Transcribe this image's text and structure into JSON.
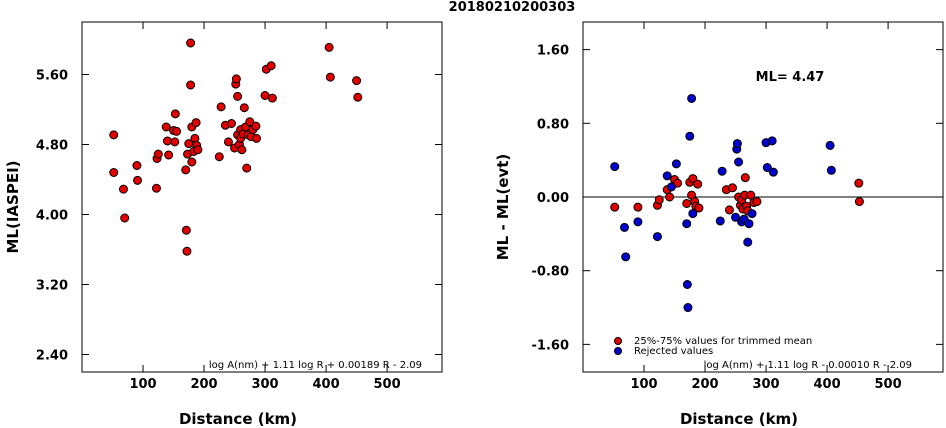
{
  "title": "20180210200303",
  "chart_data": [
    {
      "type": "scatter",
      "xlabel": "Distance (km)",
      "ylabel": "ML(IASPEI)",
      "xlim": [
        0,
        590
      ],
      "ylim": [
        2.2,
        6.2
      ],
      "xticks": [
        100,
        200,
        300,
        400,
        500
      ],
      "yticks": [
        2.4,
        3.2,
        4.0,
        4.8,
        5.6
      ],
      "ytick_labels": [
        "2.40",
        "3.20",
        "4.00",
        "4.80",
        "5.60"
      ],
      "formula": "log A(nm) + 1.11 log R + 0.00189 R - 2.09",
      "grid": false,
      "series": [
        {
          "color": "#e00000",
          "points": [
            [
              52,
              4.91
            ],
            [
              52,
              4.48
            ],
            [
              68,
              4.29
            ],
            [
              70,
              3.96
            ],
            [
              90,
              4.56
            ],
            [
              91,
              4.39
            ],
            [
              122,
              4.3
            ],
            [
              123,
              4.64
            ],
            [
              125,
              4.69
            ],
            [
              138,
              5.0
            ],
            [
              140,
              4.84
            ],
            [
              142,
              4.68
            ],
            [
              150,
              4.96
            ],
            [
              152,
              4.83
            ],
            [
              153,
              5.15
            ],
            [
              155,
              4.95
            ],
            [
              170,
              4.51
            ],
            [
              171,
              3.82
            ],
            [
              172,
              3.58
            ],
            [
              173,
              4.69
            ],
            [
              175,
              4.81
            ],
            [
              178,
              5.48
            ],
            [
              178,
              5.96
            ],
            [
              180,
              4.6
            ],
            [
              180,
              5.0
            ],
            [
              183,
              4.72
            ],
            [
              185,
              4.87
            ],
            [
              187,
              5.05
            ],
            [
              188,
              4.79
            ],
            [
              190,
              4.74
            ],
            [
              225,
              4.66
            ],
            [
              228,
              5.23
            ],
            [
              235,
              5.02
            ],
            [
              240,
              4.83
            ],
            [
              245,
              5.04
            ],
            [
              250,
              4.76
            ],
            [
              252,
              5.49
            ],
            [
              253,
              5.55
            ],
            [
              255,
              4.91
            ],
            [
              255,
              5.35
            ],
            [
              258,
              4.8
            ],
            [
              260,
              4.97
            ],
            [
              260,
              4.87
            ],
            [
              262,
              4.74
            ],
            [
              264,
              4.92
            ],
            [
              266,
              5.22
            ],
            [
              268,
              5.0
            ],
            [
              270,
              4.53
            ],
            [
              272,
              4.91
            ],
            [
              275,
              5.06
            ],
            [
              277,
              4.89
            ],
            [
              280,
              4.97
            ],
            [
              285,
              5.01
            ],
            [
              286,
              4.87
            ],
            [
              300,
              5.36
            ],
            [
              302,
              5.66
            ],
            [
              310,
              5.7
            ],
            [
              312,
              5.33
            ],
            [
              405,
              5.91
            ],
            [
              407,
              5.57
            ],
            [
              450,
              5.53
            ],
            [
              452,
              5.34
            ]
          ]
        }
      ]
    },
    {
      "type": "scatter",
      "xlabel": "Distance (km)",
      "ylabel": "ML - ML(evt)",
      "xlim": [
        0,
        590
      ],
      "ylim": [
        -1.9,
        1.9
      ],
      "xticks": [
        100,
        200,
        300,
        400,
        500
      ],
      "yticks": [
        -1.6,
        -0.8,
        0.0,
        0.8,
        1.6
      ],
      "ytick_labels": [
        "-1.60",
        "-0.80",
        "0.00",
        "0.80",
        "1.60"
      ],
      "reference_line": 0.0,
      "annotation": "ML= 4.47",
      "formula": "log A(nm) + 1.11 log R - 0.00010 R - 2.09",
      "legend": {
        "position": "bottom-left",
        "entries": [
          {
            "label": "25%-75% values for trimmed mean",
            "color": "#e00000"
          },
          {
            "label": "Rejected values",
            "color": "#0000cc"
          }
        ]
      },
      "series": [
        {
          "name": "25%-75% values for trimmed mean",
          "color": "#e00000",
          "points": [
            [
              52,
              -0.11
            ],
            [
              90,
              -0.11
            ],
            [
              122,
              -0.09
            ],
            [
              125,
              -0.03
            ],
            [
              138,
              0.08
            ],
            [
              142,
              0.0
            ],
            [
              150,
              0.19
            ],
            [
              155,
              0.15
            ],
            [
              170,
              -0.07
            ],
            [
              175,
              0.16
            ],
            [
              178,
              0.02
            ],
            [
              180,
              0.2
            ],
            [
              183,
              -0.05
            ],
            [
              185,
              -0.1
            ],
            [
              188,
              0.14
            ],
            [
              190,
              -0.12
            ],
            [
              235,
              0.08
            ],
            [
              240,
              -0.14
            ],
            [
              245,
              0.1
            ],
            [
              255,
              0.0
            ],
            [
              258,
              -0.09
            ],
            [
              260,
              -0.03
            ],
            [
              262,
              -0.13
            ],
            [
              265,
              0.02
            ],
            [
              266,
              0.21
            ],
            [
              268,
              -0.1
            ],
            [
              270,
              -0.15
            ],
            [
              275,
              0.02
            ],
            [
              280,
              -0.06
            ],
            [
              285,
              -0.05
            ],
            [
              452,
              0.15
            ],
            [
              453,
              -0.05
            ]
          ]
        },
        {
          "name": "Rejected values",
          "color": "#0000cc",
          "points": [
            [
              52,
              0.33
            ],
            [
              68,
              -0.33
            ],
            [
              70,
              -0.65
            ],
            [
              90,
              -0.27
            ],
            [
              122,
              -0.43
            ],
            [
              138,
              0.23
            ],
            [
              145,
              0.11
            ],
            [
              153,
              0.36
            ],
            [
              170,
              -0.29
            ],
            [
              171,
              -0.95
            ],
            [
              172,
              -1.2
            ],
            [
              175,
              0.66
            ],
            [
              178,
              1.07
            ],
            [
              180,
              -0.18
            ],
            [
              225,
              -0.26
            ],
            [
              228,
              0.28
            ],
            [
              250,
              -0.22
            ],
            [
              252,
              0.52
            ],
            [
              253,
              0.58
            ],
            [
              255,
              0.38
            ],
            [
              260,
              -0.27
            ],
            [
              264,
              -0.24
            ],
            [
              270,
              -0.49
            ],
            [
              272,
              -0.29
            ],
            [
              277,
              -0.18
            ],
            [
              300,
              0.59
            ],
            [
              302,
              0.32
            ],
            [
              310,
              0.61
            ],
            [
              312,
              0.27
            ],
            [
              405,
              0.56
            ],
            [
              407,
              0.29
            ]
          ]
        }
      ]
    }
  ]
}
